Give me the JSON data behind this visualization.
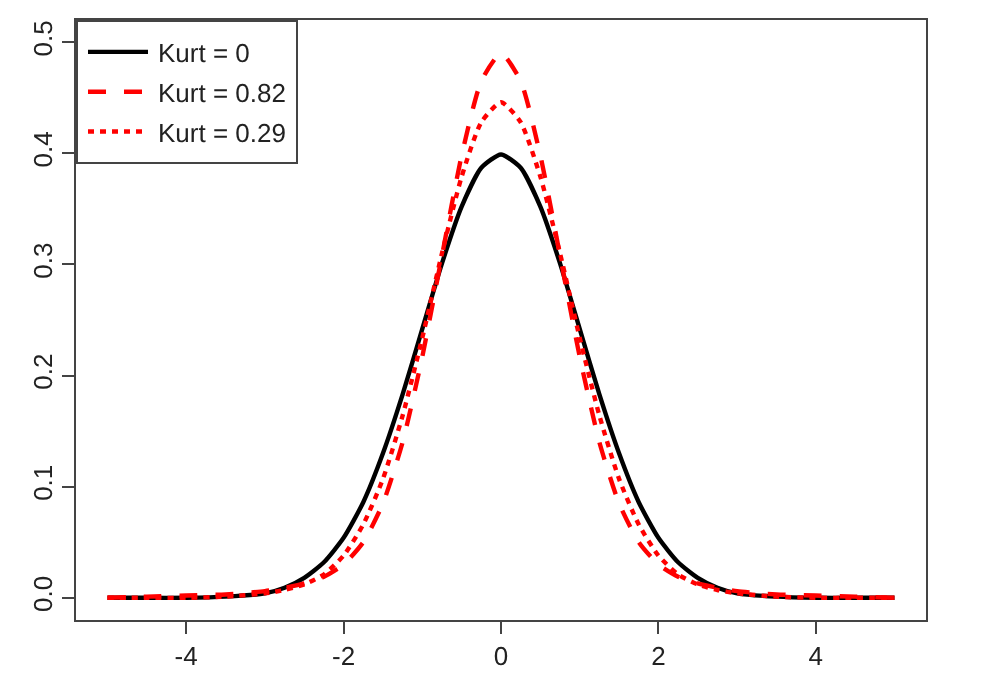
{
  "chart_data": {
    "type": "line",
    "x": [
      -5,
      -4.5,
      -4,
      -3.5,
      -3,
      -2.75,
      -2.5,
      -2.25,
      -2,
      -1.75,
      -1.5,
      -1.25,
      -1,
      -0.75,
      -0.5,
      -0.25,
      0,
      0.25,
      0.5,
      0.75,
      1,
      1.25,
      1.5,
      1.75,
      2,
      2.25,
      2.5,
      2.75,
      3,
      3.5,
      4,
      4.5,
      5
    ],
    "series": [
      {
        "name": "Kurt = 0",
        "color": "#000000",
        "line_style": "solid",
        "values": [
          0,
          0,
          0,
          0.001,
          0.004,
          0.009,
          0.018,
          0.032,
          0.054,
          0.086,
          0.13,
          0.183,
          0.242,
          0.301,
          0.352,
          0.387,
          0.399,
          0.387,
          0.352,
          0.301,
          0.242,
          0.183,
          0.13,
          0.086,
          0.054,
          0.032,
          0.018,
          0.009,
          0.004,
          0.001,
          0,
          0,
          0
        ]
      },
      {
        "name": "Kurt = 0.82",
        "color": "#ff0000",
        "line_style": "dashed",
        "values": [
          0,
          0.001,
          0.002,
          0.003,
          0.006,
          0.009,
          0.013,
          0.019,
          0.03,
          0.05,
          0.085,
          0.14,
          0.217,
          0.308,
          0.398,
          0.465,
          0.49,
          0.465,
          0.398,
          0.308,
          0.217,
          0.14,
          0.085,
          0.05,
          0.03,
          0.019,
          0.013,
          0.009,
          0.006,
          0.003,
          0.002,
          0.001,
          0
        ]
      },
      {
        "name": "Kurt = 0.29",
        "color": "#ff0000",
        "line_style": "dotted",
        "values": [
          0,
          0,
          0,
          0.001,
          0.004,
          0.007,
          0.012,
          0.021,
          0.038,
          0.066,
          0.107,
          0.164,
          0.234,
          0.31,
          0.379,
          0.428,
          0.446,
          0.428,
          0.379,
          0.31,
          0.234,
          0.164,
          0.107,
          0.066,
          0.038,
          0.021,
          0.012,
          0.007,
          0.004,
          0.001,
          0,
          0,
          0
        ]
      }
    ],
    "xlim": [
      -5.4,
      5.4
    ],
    "xticks": [
      -4,
      -2,
      0,
      2,
      4
    ],
    "ylim": [
      -0.02,
      0.52
    ],
    "yticks": [
      {
        "value": 0,
        "label": "0.0"
      },
      {
        "value": 0.1,
        "label": "0.1"
      },
      {
        "value": 0.2,
        "label": "0.2"
      },
      {
        "value": 0.3,
        "label": "0.3"
      },
      {
        "value": 0.4,
        "label": "0.4"
      },
      {
        "value": 0.5,
        "label": "0.5"
      }
    ],
    "grid": false,
    "legend": "top left",
    "marker": "none"
  }
}
